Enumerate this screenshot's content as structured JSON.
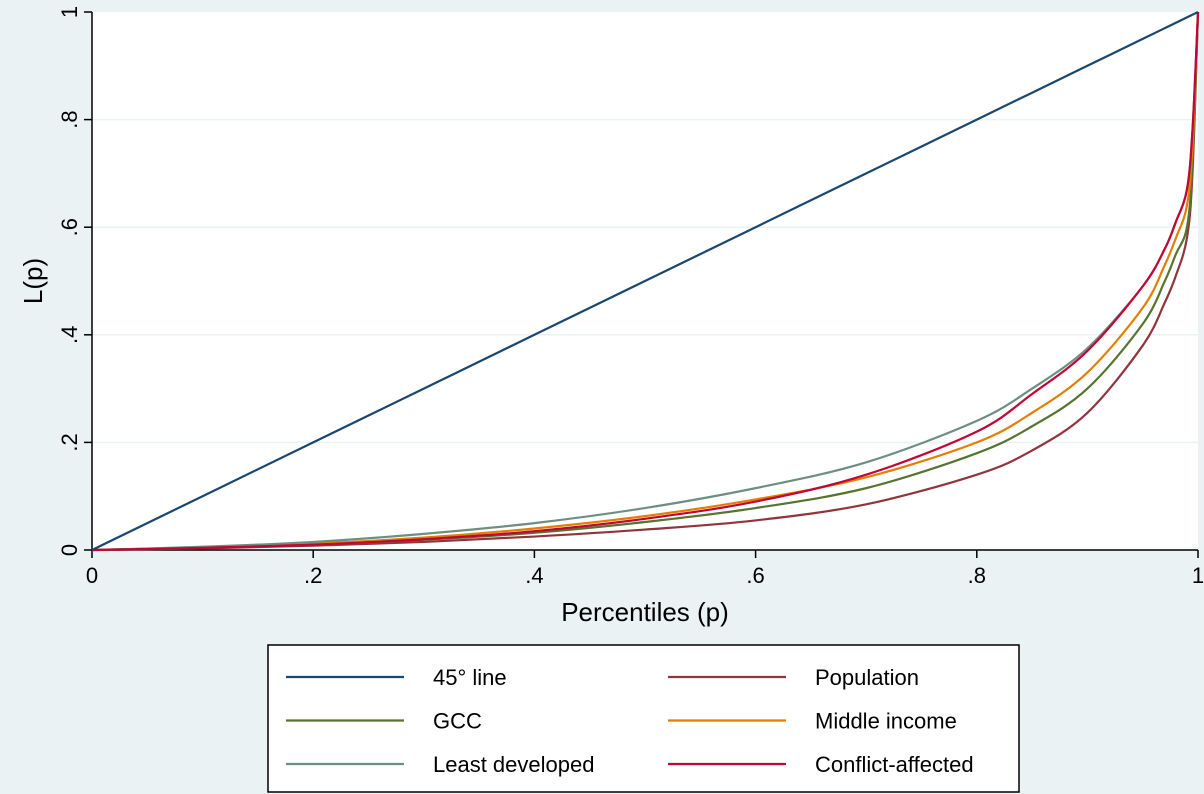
{
  "chart_data": {
    "type": "line",
    "title": "",
    "xlabel": "Percentiles (p)",
    "ylabel": "L(p)",
    "xlim": [
      0,
      1
    ],
    "ylim": [
      0,
      1
    ],
    "xticks": [
      {
        "value": 0,
        "label": "0"
      },
      {
        "value": 0.2,
        "label": ".2"
      },
      {
        "value": 0.4,
        "label": ".4"
      },
      {
        "value": 0.6,
        "label": ".6"
      },
      {
        "value": 0.8,
        "label": ".8"
      },
      {
        "value": 1,
        "label": "1"
      }
    ],
    "yticks": [
      {
        "value": 0,
        "label": "0"
      },
      {
        "value": 0.2,
        "label": ".2"
      },
      {
        "value": 0.4,
        "label": ".4"
      },
      {
        "value": 0.6,
        "label": ".6"
      },
      {
        "value": 0.8,
        "label": ".8"
      },
      {
        "value": 1,
        "label": "1"
      }
    ],
    "grid": true,
    "legend_position": "bottom",
    "x": [
      0,
      0.1,
      0.2,
      0.3,
      0.4,
      0.5,
      0.6,
      0.7,
      0.8,
      0.85,
      0.9,
      0.95,
      0.97,
      0.98,
      0.99,
      0.995,
      1
    ],
    "series": [
      {
        "name": "45° line",
        "color": "#1a476f",
        "values": [
          0,
          0.1,
          0.2,
          0.3,
          0.4,
          0.5,
          0.6,
          0.7,
          0.8,
          0.85,
          0.9,
          0.95,
          0.97,
          0.98,
          0.99,
          0.995,
          1
        ]
      },
      {
        "name": "Population",
        "color": "#90353b",
        "values": [
          0,
          0.003,
          0.008,
          0.015,
          0.025,
          0.038,
          0.055,
          0.085,
          0.14,
          0.185,
          0.255,
          0.38,
          0.46,
          0.51,
          0.58,
          0.7,
          1
        ]
      },
      {
        "name": "GCC",
        "color": "#55752f",
        "values": [
          0,
          0.004,
          0.01,
          0.019,
          0.032,
          0.052,
          0.078,
          0.115,
          0.18,
          0.23,
          0.3,
          0.42,
          0.5,
          0.55,
          0.6,
          0.72,
          1
        ]
      },
      {
        "name": "Middle income",
        "color": "#e37e00",
        "values": [
          0,
          0.005,
          0.012,
          0.023,
          0.04,
          0.063,
          0.094,
          0.135,
          0.2,
          0.255,
          0.33,
          0.45,
          0.53,
          0.58,
          0.64,
          0.75,
          1
        ]
      },
      {
        "name": "Least developed",
        "color": "#6e8e84",
        "values": [
          0,
          0.006,
          0.015,
          0.03,
          0.05,
          0.078,
          0.115,
          0.163,
          0.24,
          0.3,
          0.375,
          0.49,
          0.56,
          0.61,
          0.67,
          0.78,
          1
        ]
      },
      {
        "name": "Conflict-affected",
        "color": "#c10534",
        "values": [
          0,
          0.004,
          0.01,
          0.02,
          0.035,
          0.058,
          0.09,
          0.14,
          0.22,
          0.29,
          0.37,
          0.49,
          0.56,
          0.61,
          0.67,
          0.78,
          1
        ]
      }
    ],
    "legend_order": [
      "45° line",
      "Population",
      "GCC",
      "Middle income",
      "Least developed",
      "Conflict-affected"
    ]
  }
}
